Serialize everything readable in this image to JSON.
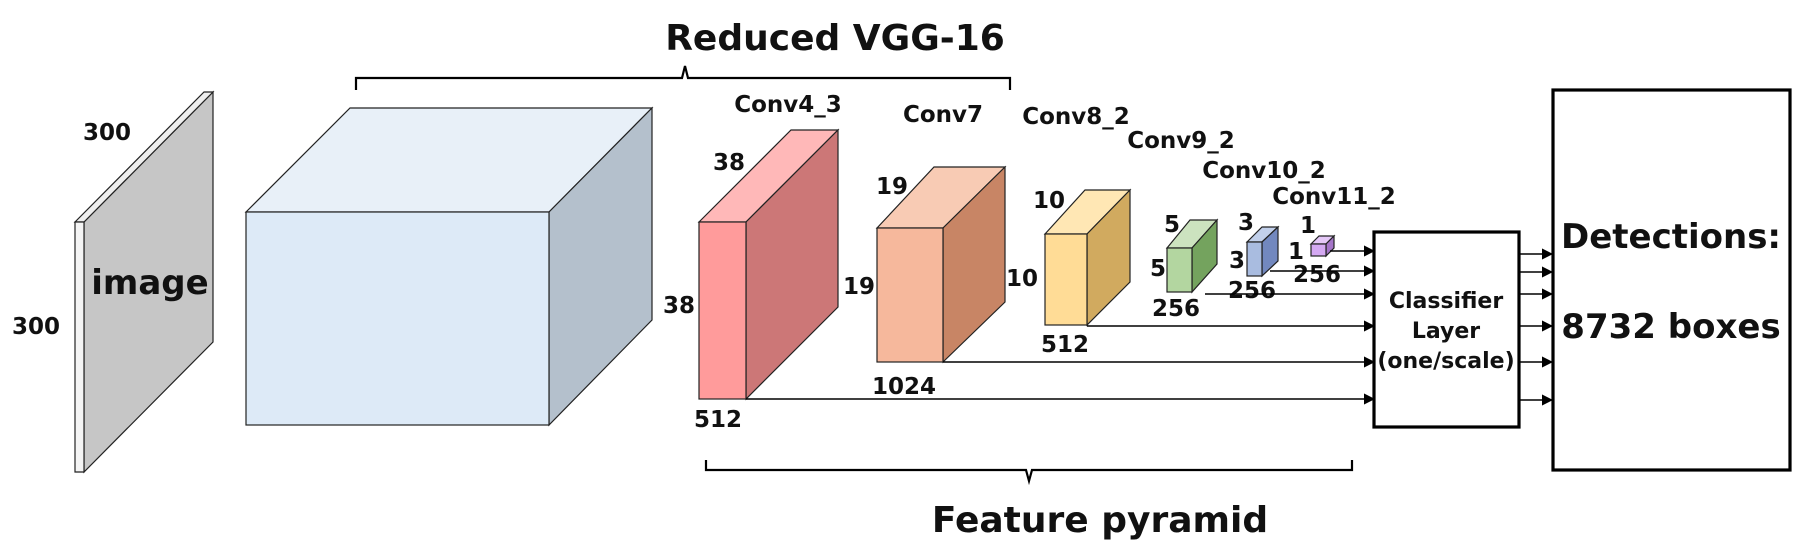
{
  "title": "Reduced VGG-16",
  "bottom_label": "Feature pyramid",
  "input": {
    "label": "image",
    "width": "300",
    "height": "300"
  },
  "layers": [
    {
      "name": "Conv4_3",
      "size": "38",
      "size2": "38",
      "channels": "512"
    },
    {
      "name": "Conv7",
      "size": "19",
      "size2": "19",
      "channels": "1024"
    },
    {
      "name": "Conv8_2",
      "size": "10",
      "size2": "10",
      "channels": "512"
    },
    {
      "name": "Conv9_2",
      "size": "5",
      "size2": "5",
      "channels": "256"
    },
    {
      "name": "Conv10_2",
      "size": "3",
      "size2": "3",
      "channels": "256"
    },
    {
      "name": "Conv11_2",
      "size": "1",
      "size2": "1",
      "channels": "256"
    }
  ],
  "classifier": {
    "line1": "Classifier",
    "line2": "Layer",
    "line3": "(one/scale)"
  },
  "detections": {
    "line1": "Detections:",
    "line2": "8732 boxes"
  },
  "colors": {
    "image": "#c6c6c6",
    "vgg": "#ddeaf7",
    "conv4_3": "#ff9b9b",
    "conv7": "#f6b89c",
    "conv8_2": "#ffdc96",
    "conv9_2": "#b3d6a0",
    "conv10_2": "#a9bce0",
    "conv11_2": "#d4a9f2"
  }
}
